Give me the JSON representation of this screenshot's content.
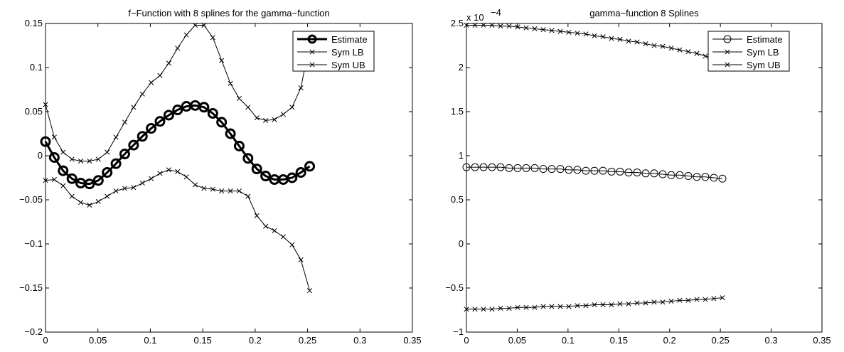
{
  "chart_data": [
    {
      "type": "line",
      "title": "f−Function with 8 splines for the gamma−function",
      "xlabel": "",
      "ylabel": "",
      "xlim": [
        0,
        0.35
      ],
      "ylim": [
        -0.2,
        0.15
      ],
      "xticks": [
        0,
        0.05,
        0.1,
        0.15,
        0.2,
        0.25,
        0.3,
        0.35
      ],
      "xticklabels": [
        "0",
        "0.05",
        "0.1",
        "0.15",
        "0.2",
        "0.25",
        "0.3",
        "0.35"
      ],
      "yticks": [
        -0.2,
        -0.15,
        -0.1,
        -0.05,
        0,
        0.05,
        0.1,
        0.15
      ],
      "yticklabels": [
        "−0.2",
        "−0.15",
        "−0.1",
        "−0.05",
        "0",
        "0.05",
        "0.1",
        "0.15"
      ],
      "exponent_label": "",
      "grid": false,
      "legend_position": "top-right",
      "x": [
        0.0,
        0.0084,
        0.0168,
        0.0252,
        0.0336,
        0.042,
        0.0504,
        0.0588,
        0.0672,
        0.0756,
        0.084,
        0.0924,
        0.1008,
        0.1092,
        0.1176,
        0.126,
        0.1344,
        0.1428,
        0.1512,
        0.1596,
        0.168,
        0.1764,
        0.1848,
        0.1932,
        0.2016,
        0.21,
        0.2184,
        0.2268,
        0.2352,
        0.2436,
        0.252
      ],
      "series": [
        {
          "name": "Estimate",
          "marker": "circle",
          "linewidth": 3,
          "markersize": 6,
          "values": [
            0.016,
            -0.002,
            -0.017,
            -0.026,
            -0.031,
            -0.032,
            -0.028,
            -0.019,
            -0.009,
            0.002,
            0.012,
            0.022,
            0.031,
            0.039,
            0.046,
            0.052,
            0.056,
            0.057,
            0.055,
            0.048,
            0.038,
            0.025,
            0.011,
            -0.003,
            -0.015,
            -0.023,
            -0.027,
            -0.027,
            -0.025,
            -0.019,
            -0.012
          ]
        },
        {
          "name": "Sym LB",
          "marker": "x",
          "linewidth": 1,
          "values": [
            -0.028,
            -0.027,
            -0.034,
            -0.046,
            -0.053,
            -0.056,
            -0.052,
            -0.046,
            -0.04,
            -0.037,
            -0.036,
            -0.031,
            -0.026,
            -0.02,
            -0.016,
            -0.018,
            -0.024,
            -0.033,
            -0.037,
            -0.038,
            -0.04,
            -0.04,
            -0.04,
            -0.046,
            -0.068,
            -0.08,
            -0.085,
            -0.092,
            -0.101,
            -0.118,
            -0.153
          ]
        },
        {
          "name": "Sym UB",
          "marker": "x",
          "linewidth": 1,
          "values": [
            0.058,
            0.021,
            0.004,
            -0.004,
            -0.006,
            -0.006,
            -0.004,
            0.004,
            0.021,
            0.038,
            0.055,
            0.07,
            0.083,
            0.091,
            0.105,
            0.122,
            0.137,
            0.148,
            0.148,
            0.134,
            0.108,
            0.082,
            0.065,
            0.055,
            0.043,
            0.04,
            0.041,
            0.047,
            0.055,
            0.077,
            0.127
          ]
        }
      ]
    },
    {
      "type": "line",
      "title": "gamma−function 8 Splines",
      "xlabel": "",
      "ylabel": "",
      "xlim": [
        0,
        0.35
      ],
      "ylim": [
        -1,
        2.5
      ],
      "xticks": [
        0,
        0.05,
        0.1,
        0.15,
        0.2,
        0.25,
        0.3,
        0.35
      ],
      "xticklabels": [
        "0",
        "0.05",
        "0.1",
        "0.15",
        "0.2",
        "0.25",
        "0.3",
        "0.35"
      ],
      "yticks": [
        -1,
        -0.5,
        0,
        0.5,
        1,
        1.5,
        2,
        2.5
      ],
      "yticklabels": [
        "−1",
        "−0.5",
        "0",
        "0.5",
        "1",
        "1.5",
        "2",
        "2.5"
      ],
      "exponent_label": "x 10",
      "exponent_power": "−4",
      "grid": false,
      "legend_position": "top-right",
      "x": [
        0.0,
        0.0084,
        0.0168,
        0.0252,
        0.0336,
        0.042,
        0.0504,
        0.0588,
        0.0672,
        0.0756,
        0.084,
        0.0924,
        0.1008,
        0.1092,
        0.1176,
        0.126,
        0.1344,
        0.1428,
        0.1512,
        0.1596,
        0.168,
        0.1764,
        0.1848,
        0.1932,
        0.2016,
        0.21,
        0.2184,
        0.2268,
        0.2352,
        0.2436,
        0.252
      ],
      "series": [
        {
          "name": "Estimate",
          "marker": "circle",
          "linewidth": 1,
          "markersize": 5,
          "values": [
            0.87,
            0.87,
            0.87,
            0.87,
            0.87,
            0.86,
            0.86,
            0.86,
            0.86,
            0.85,
            0.85,
            0.85,
            0.84,
            0.84,
            0.83,
            0.83,
            0.83,
            0.82,
            0.82,
            0.81,
            0.81,
            0.8,
            0.8,
            0.79,
            0.78,
            0.78,
            0.77,
            0.76,
            0.76,
            0.75,
            0.74
          ]
        },
        {
          "name": "Sym LB",
          "marker": "x",
          "linewidth": 1,
          "values": [
            -0.74,
            -0.74,
            -0.74,
            -0.74,
            -0.73,
            -0.73,
            -0.72,
            -0.72,
            -0.72,
            -0.71,
            -0.71,
            -0.71,
            -0.71,
            -0.7,
            -0.7,
            -0.69,
            -0.69,
            -0.69,
            -0.68,
            -0.68,
            -0.67,
            -0.67,
            -0.66,
            -0.66,
            -0.65,
            -0.64,
            -0.64,
            -0.63,
            -0.63,
            -0.62,
            -0.61
          ]
        },
        {
          "name": "Sym UB",
          "marker": "x",
          "linewidth": 1,
          "values": [
            2.48,
            2.48,
            2.48,
            2.48,
            2.47,
            2.47,
            2.46,
            2.45,
            2.44,
            2.43,
            2.42,
            2.41,
            2.4,
            2.39,
            2.38,
            2.36,
            2.35,
            2.33,
            2.32,
            2.3,
            2.29,
            2.27,
            2.25,
            2.24,
            2.22,
            2.2,
            2.18,
            2.16,
            2.13,
            2.11,
            2.08
          ]
        }
      ]
    }
  ]
}
